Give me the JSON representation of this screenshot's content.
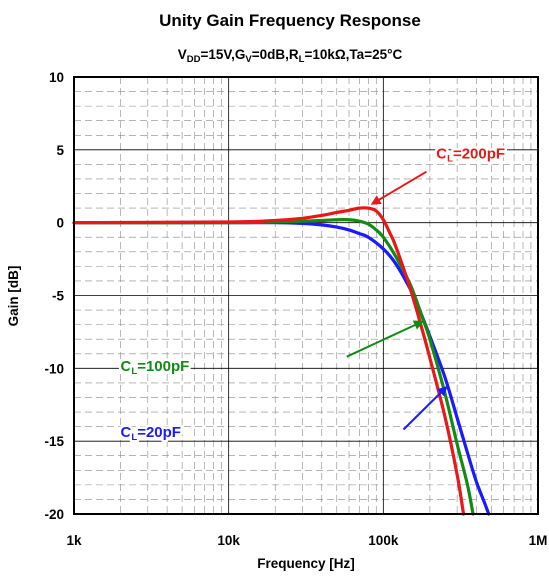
{
  "chart_data": {
    "type": "line",
    "title": "Unity Gain Frequency Response",
    "subtitle": {
      "text": "V{DD}=15V,G{V}=0dB,R{L}=10kΩ,Ta=25°C",
      "parts": [
        {
          "t": "V"
        },
        {
          "t": "DD",
          "sub": true
        },
        {
          "t": "=15V,G"
        },
        {
          "t": "V",
          "sub": true
        },
        {
          "t": "=0dB,R"
        },
        {
          "t": "L",
          "sub": true
        },
        {
          "t": "=10kΩ,Ta=25°C"
        }
      ]
    },
    "xlabel": "Frequency [Hz]",
    "ylabel": "Gain [dB]",
    "x_scale": "log",
    "xlim": [
      1000,
      1000000
    ],
    "ylim": [
      -20,
      10
    ],
    "x_ticks": [
      1000,
      10000,
      100000,
      1000000
    ],
    "x_tick_labels": [
      "1k",
      "10k",
      "100k",
      "1M"
    ],
    "y_ticks": [
      10,
      5,
      0,
      -5,
      -10,
      -15,
      -20
    ],
    "y_tick_labels": [
      "10",
      "5",
      "0",
      "-5",
      "-10",
      "-15",
      "-20"
    ],
    "grid": true,
    "series": [
      {
        "name": "CL=20pF",
        "label_parts": [
          {
            "t": "C"
          },
          {
            "t": "L",
            "sub": true
          },
          {
            "t": "=20pF"
          }
        ],
        "color": "#1a1aff",
        "points": [
          [
            1000,
            0
          ],
          [
            10000,
            0
          ],
          [
            20000,
            0
          ],
          [
            30000,
            -0.05
          ],
          [
            40000,
            -0.15
          ],
          [
            50000,
            -0.3
          ],
          [
            60000,
            -0.5
          ],
          [
            70000,
            -0.75
          ],
          [
            80000,
            -1.0
          ],
          [
            100000,
            -1.8
          ],
          [
            120000,
            -2.8
          ],
          [
            150000,
            -4.6
          ],
          [
            170000,
            -5.9
          ],
          [
            200000,
            -7.8
          ],
          [
            250000,
            -10.6
          ],
          [
            300000,
            -13.4
          ],
          [
            350000,
            -15.8
          ],
          [
            400000,
            -17.8
          ],
          [
            450000,
            -19.2
          ],
          [
            480000,
            -20
          ]
        ]
      },
      {
        "name": "CL=100pF",
        "label_parts": [
          {
            "t": "C"
          },
          {
            "t": "L",
            "sub": true
          },
          {
            "t": "=100pF"
          }
        ],
        "color": "#138a13",
        "points": [
          [
            1000,
            0
          ],
          [
            10000,
            0
          ],
          [
            20000,
            0.05
          ],
          [
            30000,
            0.1
          ],
          [
            40000,
            0.15
          ],
          [
            50000,
            0.2
          ],
          [
            60000,
            0.2
          ],
          [
            70000,
            0.1
          ],
          [
            80000,
            -0.1
          ],
          [
            90000,
            -0.5
          ],
          [
            100000,
            -1.0
          ],
          [
            120000,
            -2.3
          ],
          [
            150000,
            -4.3
          ],
          [
            180000,
            -6.6
          ],
          [
            200000,
            -8.0
          ],
          [
            250000,
            -11.7
          ],
          [
            300000,
            -15.2
          ],
          [
            350000,
            -18.0
          ],
          [
            380000,
            -20
          ]
        ]
      },
      {
        "name": "CL=200pF",
        "label_parts": [
          {
            "t": "C"
          },
          {
            "t": "L",
            "sub": true
          },
          {
            "t": "=200pF"
          }
        ],
        "color": "#e81818",
        "points": [
          [
            1000,
            0
          ],
          [
            10000,
            0.05
          ],
          [
            20000,
            0.15
          ],
          [
            30000,
            0.3
          ],
          [
            40000,
            0.5
          ],
          [
            50000,
            0.7
          ],
          [
            60000,
            0.85
          ],
          [
            70000,
            1.0
          ],
          [
            80000,
            1.0
          ],
          [
            90000,
            0.8
          ],
          [
            100000,
            0.2
          ],
          [
            110000,
            -0.7
          ],
          [
            120000,
            -1.6
          ],
          [
            150000,
            -4.6
          ],
          [
            180000,
            -7.5
          ],
          [
            200000,
            -9.3
          ],
          [
            250000,
            -13.3
          ],
          [
            300000,
            -17.3
          ],
          [
            330000,
            -20
          ]
        ]
      }
    ],
    "annotations": [
      {
        "series": "CL=200pF",
        "label_parts": [
          {
            "t": "C"
          },
          {
            "t": "L",
            "sub": true
          },
          {
            "t": "=200pF"
          }
        ],
        "color": "#e81818",
        "text_at": [
          220000,
          4.4
        ],
        "arrow_from": [
          190000,
          3.5
        ],
        "arrow_to": [
          85000,
          1.3
        ]
      },
      {
        "series": "CL=100pF",
        "label_parts": [
          {
            "t": "C"
          },
          {
            "t": "L",
            "sub": true
          },
          {
            "t": "=100pF"
          }
        ],
        "color": "#138a13",
        "text_at": [
          2000,
          -10.2
        ],
        "arrow_from": [
          58000,
          -9.2
        ],
        "arrow_to": [
          178000,
          -6.8
        ]
      },
      {
        "series": "CL=20pF",
        "label_parts": [
          {
            "t": "C"
          },
          {
            "t": "L",
            "sub": true
          },
          {
            "t": "=20pF"
          }
        ],
        "color": "#1a1aff",
        "text_at": [
          2000,
          -14.7
        ],
        "arrow_from": [
          135000,
          -14.2
        ],
        "arrow_to": [
          255000,
          -11.3
        ]
      }
    ]
  }
}
